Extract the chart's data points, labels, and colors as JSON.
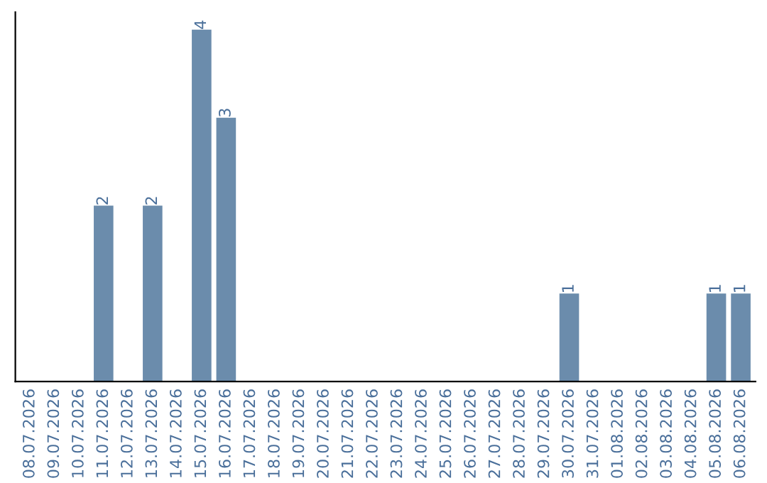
{
  "chart_data": {
    "type": "bar",
    "categories": [
      "08.07.2026",
      "09.07.2026",
      "10.07.2026",
      "11.07.2026",
      "12.07.2026",
      "13.07.2026",
      "14.07.2026",
      "15.07.2026",
      "16.07.2026",
      "17.07.2026",
      "18.07.2026",
      "19.07.2026",
      "20.07.2026",
      "21.07.2026",
      "22.07.2026",
      "23.07.2026",
      "24.07.2026",
      "25.07.2026",
      "26.07.2026",
      "27.07.2026",
      "28.07.2026",
      "29.07.2026",
      "30.07.2026",
      "31.07.2026",
      "01.08.2026",
      "02.08.2026",
      "03.08.2026",
      "04.08.2026",
      "05.08.2026",
      "06.08.2026"
    ],
    "values": [
      0,
      0,
      0,
      2,
      0,
      2,
      0,
      4,
      3,
      0,
      0,
      0,
      0,
      0,
      0,
      0,
      0,
      0,
      0,
      0,
      0,
      0,
      1,
      0,
      0,
      0,
      0,
      0,
      1,
      1
    ],
    "value_labels": [
      null,
      null,
      null,
      "2",
      null,
      "2",
      null,
      "4",
      "3",
      null,
      null,
      null,
      null,
      null,
      null,
      null,
      null,
      null,
      null,
      null,
      null,
      null,
      "1",
      null,
      null,
      null,
      null,
      null,
      "1",
      "1"
    ],
    "color": "#6b8cac",
    "tick_labels": "x",
    "grid": false,
    "legend": false
  }
}
